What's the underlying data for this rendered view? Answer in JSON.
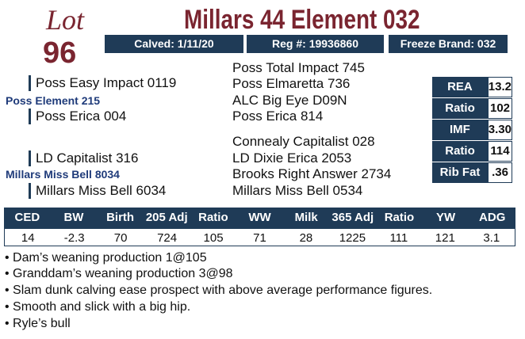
{
  "lot": {
    "label": "Lot",
    "number": "96"
  },
  "title": "Millars 44 Element 032",
  "info": [
    "Calved: 1/11/20",
    "Reg #: 19936860",
    "Freeze Brand: 032"
  ],
  "pedigree": {
    "sire": "Poss Element 215",
    "sire_sire": "Poss Easy Impact 0119",
    "sire_dam": "Poss Erica 004",
    "dam": "Millars Miss Bell 8034",
    "dam_sire": "LD Capitalist 316",
    "dam_dam": "Millars Miss Bell 6034",
    "grandparents": [
      "Poss Total Impact 745",
      "Poss Elmaretta 736",
      "ALC Big Eye D09N",
      "Poss Erica 814",
      "Connealy Capitalist 028",
      "LD Dixie Erica 2053",
      "Brooks Right Answer 2734",
      "Millars Miss Bell 0534"
    ]
  },
  "carcass": {
    "rows": [
      [
        "REA",
        "13.2"
      ],
      [
        "Ratio",
        "102"
      ],
      [
        "IMF",
        "3.30"
      ],
      [
        "Ratio",
        "114"
      ],
      [
        "Rib Fat",
        ".36"
      ]
    ]
  },
  "epd": {
    "headers": [
      "CED",
      "BW",
      "Birth",
      "205 Adj",
      "Ratio",
      "WW",
      "Milk",
      "365 Adj",
      "Ratio",
      "YW",
      "ADG"
    ],
    "values": [
      "14",
      "-2.3",
      "70",
      "724",
      "105",
      "71",
      "28",
      "1225",
      "111",
      "121",
      "3.1"
    ]
  },
  "notes": [
    "Dam’s weaning production 1@105",
    "Granddam’s weaning production 3@98",
    "Slam dunk calving ease prospect with above average performance figures.",
    "Smooth and slick with a big hip.",
    "Ryle’s bull"
  ]
}
